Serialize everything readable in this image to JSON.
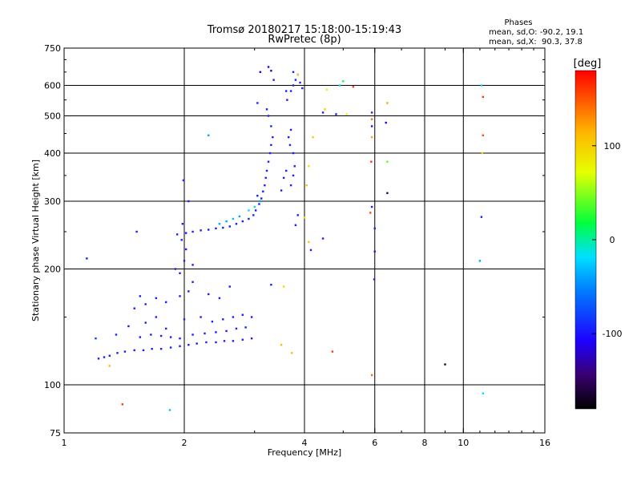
{
  "chart_data": {
    "type": "scatter",
    "title": "Tromsø 20180217 15:18:00-15:19:43",
    "subtitle": "RwPretec (8p)",
    "xlabel": "Frequency [MHz]",
    "ylabel": "Stationary phase Virtual Height [km]",
    "x_scale": "log",
    "y_scale": "log",
    "xlim": [
      1,
      16
    ],
    "ylim": [
      75,
      750
    ],
    "x_ticks": [
      1,
      2,
      4,
      6,
      8,
      10,
      16
    ],
    "x_tick_labels": [
      "1",
      "2",
      "4",
      "6",
      "8",
      "10",
      "16"
    ],
    "y_ticks": [
      75,
      100,
      200,
      300,
      400,
      500,
      600,
      750
    ],
    "y_tick_labels": [
      "75",
      "100",
      "200",
      "300",
      "400",
      "500",
      "600",
      "750"
    ],
    "grid": true,
    "phase_info": {
      "heading": "Phases",
      "line_o": "mean, sd,O: -90.2, 19.1",
      "line_x": "mean, sd,X:  90.3, 37.8"
    },
    "colorbar": {
      "label": "[deg]",
      "range": [
        -180,
        180
      ],
      "ticks": [
        -100,
        0,
        100
      ],
      "tick_labels": [
        "-100",
        "0",
        "100"
      ]
    },
    "series": [
      {
        "points": [
          [
            1.22,
            117,
            -95
          ],
          [
            1.26,
            118,
            -95
          ],
          [
            1.3,
            119,
            -95
          ],
          [
            1.36,
            121,
            -95
          ],
          [
            1.42,
            122,
            -95
          ],
          [
            1.5,
            123,
            -95
          ],
          [
            1.58,
            123,
            -95
          ],
          [
            1.66,
            124,
            -95
          ],
          [
            1.75,
            124,
            -95
          ],
          [
            1.85,
            125,
            -95
          ],
          [
            1.95,
            126,
            -95
          ],
          [
            2.05,
            127,
            -95
          ],
          [
            2.15,
            128,
            -95
          ],
          [
            2.27,
            129,
            -95
          ],
          [
            2.4,
            129,
            -95
          ],
          [
            2.52,
            130,
            -95
          ],
          [
            2.65,
            130,
            -95
          ],
          [
            2.8,
            131,
            -95
          ],
          [
            2.95,
            132,
            -95
          ],
          [
            1.55,
            133,
            -95
          ],
          [
            1.65,
            135,
            -95
          ],
          [
            1.75,
            134,
            -95
          ],
          [
            1.85,
            133,
            -95
          ],
          [
            1.95,
            132,
            -95
          ],
          [
            2.1,
            135,
            -95
          ],
          [
            2.25,
            136,
            -95
          ],
          [
            2.4,
            137,
            -95
          ],
          [
            2.55,
            138,
            -95
          ],
          [
            2.7,
            140,
            -95
          ],
          [
            2.85,
            141,
            -95
          ],
          [
            1.2,
            132,
            -80
          ],
          [
            1.35,
            135,
            -95
          ],
          [
            1.45,
            142,
            -95
          ],
          [
            1.6,
            145,
            -95
          ],
          [
            1.7,
            150,
            -95
          ],
          [
            1.8,
            140,
            -95
          ],
          [
            2.0,
            148,
            -95
          ],
          [
            2.2,
            150,
            -95
          ],
          [
            2.35,
            146,
            -95
          ],
          [
            2.5,
            148,
            -95
          ],
          [
            2.65,
            150,
            -95
          ],
          [
            2.8,
            152,
            -95
          ],
          [
            2.95,
            150,
            -95
          ],
          [
            1.5,
            158,
            -95
          ],
          [
            1.6,
            162,
            -95
          ],
          [
            1.7,
            168,
            -95
          ],
          [
            1.55,
            170,
            -95
          ],
          [
            1.8,
            164,
            -95
          ],
          [
            1.95,
            170,
            -95
          ],
          [
            2.05,
            175,
            -95
          ],
          [
            2.1,
            185,
            -95
          ],
          [
            2.3,
            172,
            -95
          ],
          [
            2.45,
            168,
            -95
          ],
          [
            2.6,
            180,
            -95
          ],
          [
            1.95,
            195,
            -95
          ],
          [
            2.0,
            210,
            -95
          ],
          [
            2.02,
            225,
            -95
          ],
          [
            1.9,
            200,
            -95
          ],
          [
            2.1,
            205,
            -95
          ],
          [
            1.97,
            238,
            -95
          ],
          [
            1.98,
            262,
            -95
          ],
          [
            2.05,
            300,
            -95
          ],
          [
            1.99,
            340,
            -95
          ],
          [
            1.92,
            246,
            -95
          ],
          [
            2.02,
            248,
            -95
          ],
          [
            2.1,
            250,
            -95
          ],
          [
            2.2,
            252,
            -95
          ],
          [
            2.3,
            253,
            -95
          ],
          [
            2.4,
            255,
            -95
          ],
          [
            2.5,
            256,
            -95
          ],
          [
            2.6,
            258,
            -95
          ],
          [
            2.7,
            262,
            -95
          ],
          [
            2.8,
            266,
            -95
          ],
          [
            2.9,
            270,
            -95
          ],
          [
            2.98,
            276,
            -95
          ],
          [
            2.45,
            262,
            -40
          ],
          [
            2.55,
            266,
            -40
          ],
          [
            2.65,
            270,
            -30
          ],
          [
            2.75,
            274,
            -40
          ],
          [
            2.9,
            284,
            -20
          ],
          [
            3.02,
            284,
            -95
          ],
          [
            3.08,
            295,
            -95
          ],
          [
            3.12,
            305,
            -95
          ],
          [
            3.15,
            318,
            -95
          ],
          [
            3.18,
            330,
            -95
          ],
          [
            3.2,
            345,
            -95
          ],
          [
            3.22,
            360,
            -95
          ],
          [
            3.25,
            380,
            -95
          ],
          [
            3.28,
            400,
            -95
          ],
          [
            3.3,
            420,
            -95
          ],
          [
            3.33,
            440,
            -95
          ],
          [
            3.3,
            470,
            -95
          ],
          [
            3.25,
            500,
            -95
          ],
          [
            3.22,
            520,
            -95
          ],
          [
            3.05,
            540,
            -95
          ],
          [
            3.1,
            300,
            -40
          ],
          [
            3.0,
            290,
            -20
          ],
          [
            3.05,
            310,
            -95
          ],
          [
            3.7,
            330,
            -95
          ],
          [
            3.75,
            350,
            -95
          ],
          [
            3.78,
            370,
            -95
          ],
          [
            3.75,
            400,
            -95
          ],
          [
            3.68,
            420,
            -95
          ],
          [
            3.65,
            440,
            -95
          ],
          [
            3.7,
            460,
            -95
          ],
          [
            3.55,
            345,
            -95
          ],
          [
            3.6,
            360,
            -95
          ],
          [
            3.5,
            320,
            -95
          ],
          [
            3.62,
            550,
            -95
          ],
          [
            3.7,
            580,
            -95
          ],
          [
            3.75,
            600,
            -95
          ],
          [
            3.8,
            620,
            -95
          ],
          [
            3.9,
            610,
            -95
          ],
          [
            3.95,
            590,
            -95
          ],
          [
            3.85,
            640,
            -95
          ],
          [
            3.6,
            580,
            -95
          ],
          [
            3.75,
            650,
            -95
          ],
          [
            3.35,
            620,
            -95
          ],
          [
            3.1,
            650,
            -120
          ],
          [
            3.25,
            670,
            -120
          ],
          [
            3.3,
            655,
            -120
          ],
          [
            3.8,
            260,
            -95
          ],
          [
            3.85,
            276,
            -95
          ],
          [
            4.0,
            272,
            90
          ],
          [
            4.05,
            330,
            110
          ],
          [
            4.1,
            370,
            90
          ],
          [
            4.2,
            440,
            100
          ],
          [
            4.45,
            510,
            -95
          ],
          [
            4.5,
            520,
            100
          ],
          [
            4.55,
            585,
            80
          ],
          [
            4.9,
            600,
            -20
          ],
          [
            5.0,
            615,
            20
          ],
          [
            5.3,
            595,
            160
          ],
          [
            4.8,
            505,
            -95
          ],
          [
            5.1,
            505,
            80
          ],
          [
            5.9,
            510,
            -95
          ],
          [
            5.9,
            490,
            140
          ],
          [
            5.9,
            470,
            -100
          ],
          [
            5.9,
            440,
            120
          ],
          [
            5.88,
            380,
            160
          ],
          [
            5.9,
            290,
            -95
          ],
          [
            5.85,
            280,
            150
          ],
          [
            6.0,
            255,
            -95
          ],
          [
            6.0,
            222,
            -100
          ],
          [
            5.98,
            188,
            -95
          ],
          [
            6.45,
            540,
            120
          ],
          [
            6.4,
            480,
            -110
          ],
          [
            6.45,
            380,
            40
          ],
          [
            6.45,
            315,
            -150
          ],
          [
            4.1,
            235,
            100
          ],
          [
            4.15,
            224,
            -95
          ],
          [
            4.45,
            240,
            -95
          ],
          [
            4.7,
            122,
            160
          ],
          [
            5.9,
            106,
            140
          ],
          [
            9.0,
            113,
            -160
          ],
          [
            11.1,
            600,
            -20
          ],
          [
            11.2,
            560,
            160
          ],
          [
            11.2,
            445,
            150
          ],
          [
            11.15,
            400,
            100
          ],
          [
            11.1,
            273,
            -95
          ],
          [
            11.0,
            210,
            -40
          ],
          [
            11.2,
            95,
            -20
          ],
          [
            1.4,
            89,
            160
          ],
          [
            1.84,
            86,
            -30
          ],
          [
            1.3,
            112,
            110
          ],
          [
            3.5,
            127,
            110
          ],
          [
            3.72,
            121,
            110
          ],
          [
            3.55,
            180,
            90
          ],
          [
            3.3,
            182,
            -95
          ],
          [
            1.14,
            213,
            -95
          ],
          [
            1.52,
            250,
            -95
          ],
          [
            2.3,
            445,
            -40
          ],
          [
            3.85,
            640,
            100
          ]
        ]
      }
    ]
  }
}
